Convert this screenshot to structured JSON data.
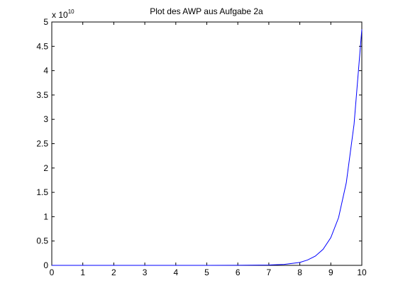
{
  "chart_data": {
    "type": "line",
    "title": "Plot des AWP aus Aufgabe 2a",
    "xlabel": "",
    "ylabel": "",
    "xlim": [
      0,
      10
    ],
    "ylim": [
      0,
      5
    ],
    "y_multiplier": {
      "base": "x 10",
      "exponent": "10"
    },
    "x_ticks": [
      0,
      1,
      2,
      3,
      4,
      5,
      6,
      7,
      8,
      9,
      10
    ],
    "x_tick_labels": [
      "0",
      "1",
      "2",
      "3",
      "4",
      "5",
      "6",
      "7",
      "8",
      "9",
      "10"
    ],
    "y_ticks": [
      0,
      0.5,
      1,
      1.5,
      2,
      2.5,
      3,
      3.5,
      4,
      4.5,
      5
    ],
    "y_tick_labels": [
      "0",
      "0.5",
      "1",
      "1.5",
      "2",
      "2.5",
      "3",
      "3.5",
      "4",
      "4.5",
      "5"
    ],
    "grid": false,
    "legend": "none",
    "series": [
      {
        "color": "#0000ff",
        "x": [
          0,
          1,
          2,
          3,
          4,
          5,
          6,
          7,
          7.5,
          8,
          8.25,
          8.5,
          8.75,
          9,
          9.25,
          9.5,
          9.75,
          10
        ],
        "y": [
          0,
          0,
          0,
          0,
          0,
          0,
          0.001,
          0.008,
          0.02,
          0.06,
          0.11,
          0.19,
          0.33,
          0.57,
          0.98,
          1.7,
          2.9,
          4.85
        ]
      }
    ]
  }
}
